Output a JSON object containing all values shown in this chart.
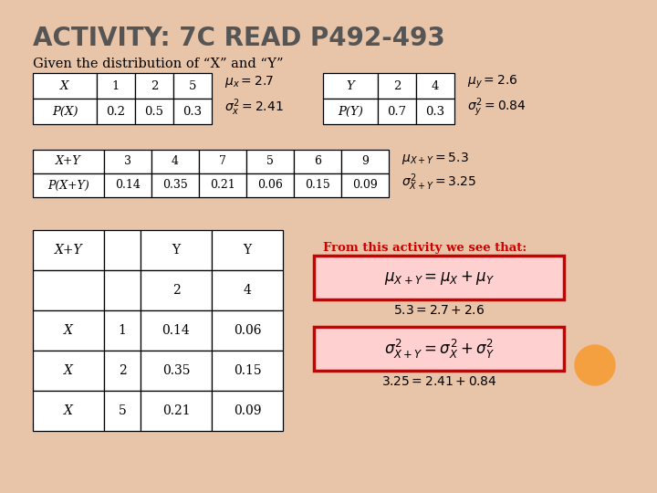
{
  "title": "ACTIVITY: 7C READ P492-493",
  "subtitle": "Given the distribution of “X” and “Y”",
  "bg_color": "#e8c4a8",
  "slide_bg": "#ffffff",
  "table_x": [
    [
      "X",
      "1",
      "2",
      "5"
    ],
    [
      "P(X)",
      "0.2",
      "0.5",
      "0.3"
    ]
  ],
  "mu_x_tex": "$\\mu_x = 2.7$",
  "sigma2_x_tex": "$\\sigma_x^2 = 2.41$",
  "table_y": [
    [
      "Y",
      "2",
      "4"
    ],
    [
      "P(Y)",
      "0.7",
      "0.3"
    ]
  ],
  "mu_y_tex": "$\\mu_y = 2.6$",
  "sigma2_y_tex": "$\\sigma_y^2 = 0.84$",
  "table_xy": [
    [
      "X+Y",
      "3",
      "4",
      "7",
      "5",
      "6",
      "9"
    ],
    [
      "P(X+Y)",
      "0.14",
      "0.35",
      "0.21",
      "0.06",
      "0.15",
      "0.09"
    ]
  ],
  "mu_xy_tex": "$\\mu_{X+Y} = 5.3$",
  "sigma2_xy_tex": "$\\sigma_{X+Y}^2 = 3.25$",
  "from_text": "From this activity we see that:",
  "eq1_tex": "$\\mu_{X+Y} = \\mu_X + \\mu_Y$",
  "eq1_num": "$5.3 = 2.7 + 2.6$",
  "eq2_tex": "$\\sigma^2_{X+Y} = \\sigma^2_X + \\sigma^2_Y$",
  "eq2_num": "$3.25 = 2.41 + 0.84$",
  "joint_rows": [
    [
      "X+Y",
      "",
      "Y",
      "Y"
    ],
    [
      "",
      "",
      "2",
      "4"
    ],
    [
      "X",
      "1",
      "0.14",
      "0.06"
    ],
    [
      "X",
      "2",
      "0.35",
      "0.15"
    ],
    [
      "X",
      "5",
      "0.21",
      "0.09"
    ]
  ],
  "title_color": "#555555",
  "red_color": "#cc0000",
  "box_fill": "#ffd0d0",
  "orange_circle": "#f5a040"
}
